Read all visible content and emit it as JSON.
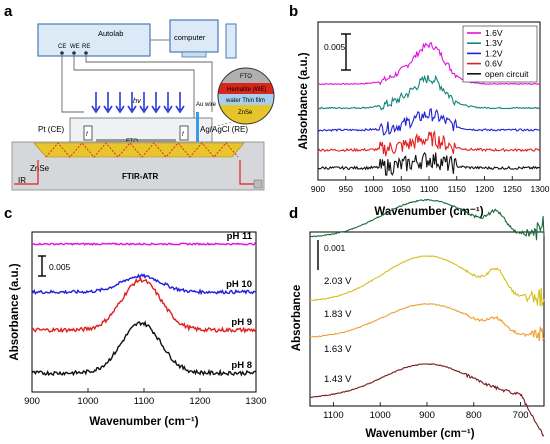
{
  "panel_letters": {
    "a": "a",
    "b": "b",
    "c": "c",
    "d": "d"
  },
  "diagram": {
    "autolab": "Autolab",
    "computer": "computer",
    "ce": "CE",
    "we": "WE",
    "re": "RE",
    "hv": "hv",
    "pt_ce": "Pt (CE)",
    "ag_agcl": "Ag/AgCl (RE)",
    "znse": "ZnSe",
    "ir": "IR",
    "ftir_atr": "FTIR-ATR",
    "fto_small": "FTO",
    "au_wire": "Au wire",
    "layers": [
      "FTO",
      "Hematite (WE)",
      "water Thin film",
      "ZnSe"
    ],
    "layer_colors": [
      "#b0b0b0",
      "#d9261c",
      "#a9cfee",
      "#e6c52a"
    ]
  },
  "chart_data": [
    {
      "type": "line",
      "panel": "b",
      "xlabel": "Wavenumber (cm⁻¹)",
      "ylabel": "Absorbance (a.u.)",
      "xlim": [
        900,
        1300
      ],
      "x_ticks": [
        "900",
        "950",
        "1000",
        "1050",
        "1100",
        "1150",
        "1200",
        "1250",
        "1300"
      ],
      "scale_bar": "0.005",
      "legend_position": "top-right",
      "series": [
        {
          "name": "1.6V",
          "color": "#e010e0",
          "offset": 4,
          "peak": 0.0056,
          "noise": 0.0004
        },
        {
          "name": "1.3V",
          "color": "#13857a",
          "offset": 3,
          "peak": 0.0042,
          "noise": 0.0006
        },
        {
          "name": "1.2V",
          "color": "#2020d8",
          "offset": 2,
          "peak": 0.0022,
          "noise": 0.0008
        },
        {
          "name": "0.6V",
          "color": "#e02020",
          "offset": 1,
          "peak": 0.0016,
          "noise": 0.001
        },
        {
          "name": "open circuit",
          "color": "#111111",
          "offset": 0,
          "peak": 0.0012,
          "noise": 0.0011
        }
      ]
    },
    {
      "type": "line",
      "panel": "c",
      "xlabel": "Wavenumber (cm⁻¹)",
      "ylabel": "Absorbance (a.u.)",
      "xlim": [
        900,
        1300
      ],
      "x_ticks": [
        "900",
        "1000",
        "1100",
        "1200",
        "1300"
      ],
      "scale_bar": "0.005",
      "series": [
        {
          "name": "pH 11",
          "color": "#e010e0",
          "peak": 0.0,
          "noise": 0.0002
        },
        {
          "name": "pH 10",
          "color": "#2020d8",
          "peak": 0.004,
          "noise": 0.0004
        },
        {
          "name": "pH 9",
          "color": "#e02020",
          "peak": 0.0125,
          "noise": 0.0005
        },
        {
          "name": "pH 8",
          "color": "#111111",
          "peak": 0.0125,
          "noise": 0.0005
        }
      ]
    },
    {
      "type": "line",
      "panel": "d",
      "xlabel": "Wavenumber (cm⁻¹)",
      "ylabel": "Absorbance",
      "xlim": [
        1150,
        650
      ],
      "x_ticks": [
        "1100",
        "1000",
        "900",
        "800",
        "700"
      ],
      "scale_bar": "0.001",
      "series": [
        {
          "name": "2.03 V",
          "color": "#1a6a3a"
        },
        {
          "name": "1.83 V",
          "color": "#d6c020"
        },
        {
          "name": "1.63 V",
          "color": "#f0a030"
        },
        {
          "name": "1.43 V",
          "color": "#7a1a20"
        }
      ]
    }
  ]
}
